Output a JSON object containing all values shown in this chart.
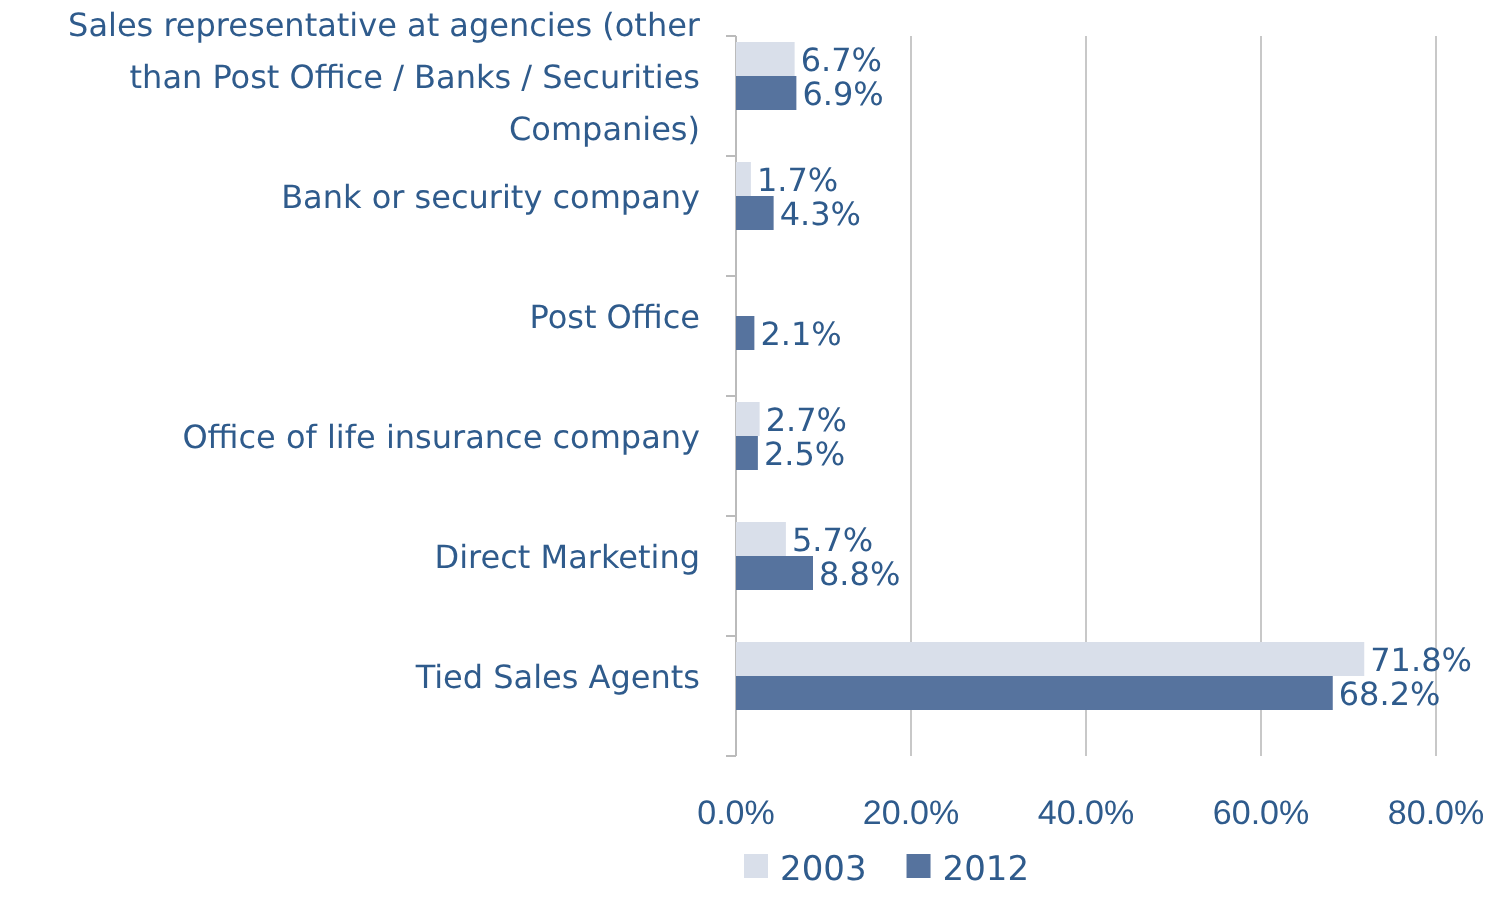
{
  "chart_data": {
    "type": "bar",
    "orientation": "horizontal",
    "categories": [
      "Sales representative at agencies (other than Post Office / Banks / Securities Companies)",
      "Bank or security company",
      "Post Office",
      "Office of life insurance company",
      "Direct Marketing",
      "Tied Sales Agents"
    ],
    "series": [
      {
        "name": "2003",
        "color": "#d9dfea",
        "values": [
          6.7,
          1.7,
          null,
          2.7,
          5.7,
          71.8
        ],
        "value_labels": [
          "6.7%",
          "1.7%",
          null,
          "2.7%",
          "5.7%",
          "71.8%"
        ]
      },
      {
        "name": "2012",
        "color": "#56739e",
        "values": [
          6.9,
          4.3,
          2.1,
          2.5,
          8.8,
          68.2
        ],
        "value_labels": [
          "6.9%",
          "4.3%",
          "2.1%",
          "2.5%",
          "8.8%",
          "68.2%"
        ]
      }
    ],
    "xlim": [
      0,
      80
    ],
    "xticks": [
      {
        "value": 0,
        "label": "0.0%"
      },
      {
        "value": 20,
        "label": "20.0%"
      },
      {
        "value": 40,
        "label": "40.0%"
      },
      {
        "value": 60,
        "label": "60.0%"
      },
      {
        "value": 80,
        "label": "80.0%"
      }
    ],
    "grid": "x",
    "legend": "bottom"
  }
}
